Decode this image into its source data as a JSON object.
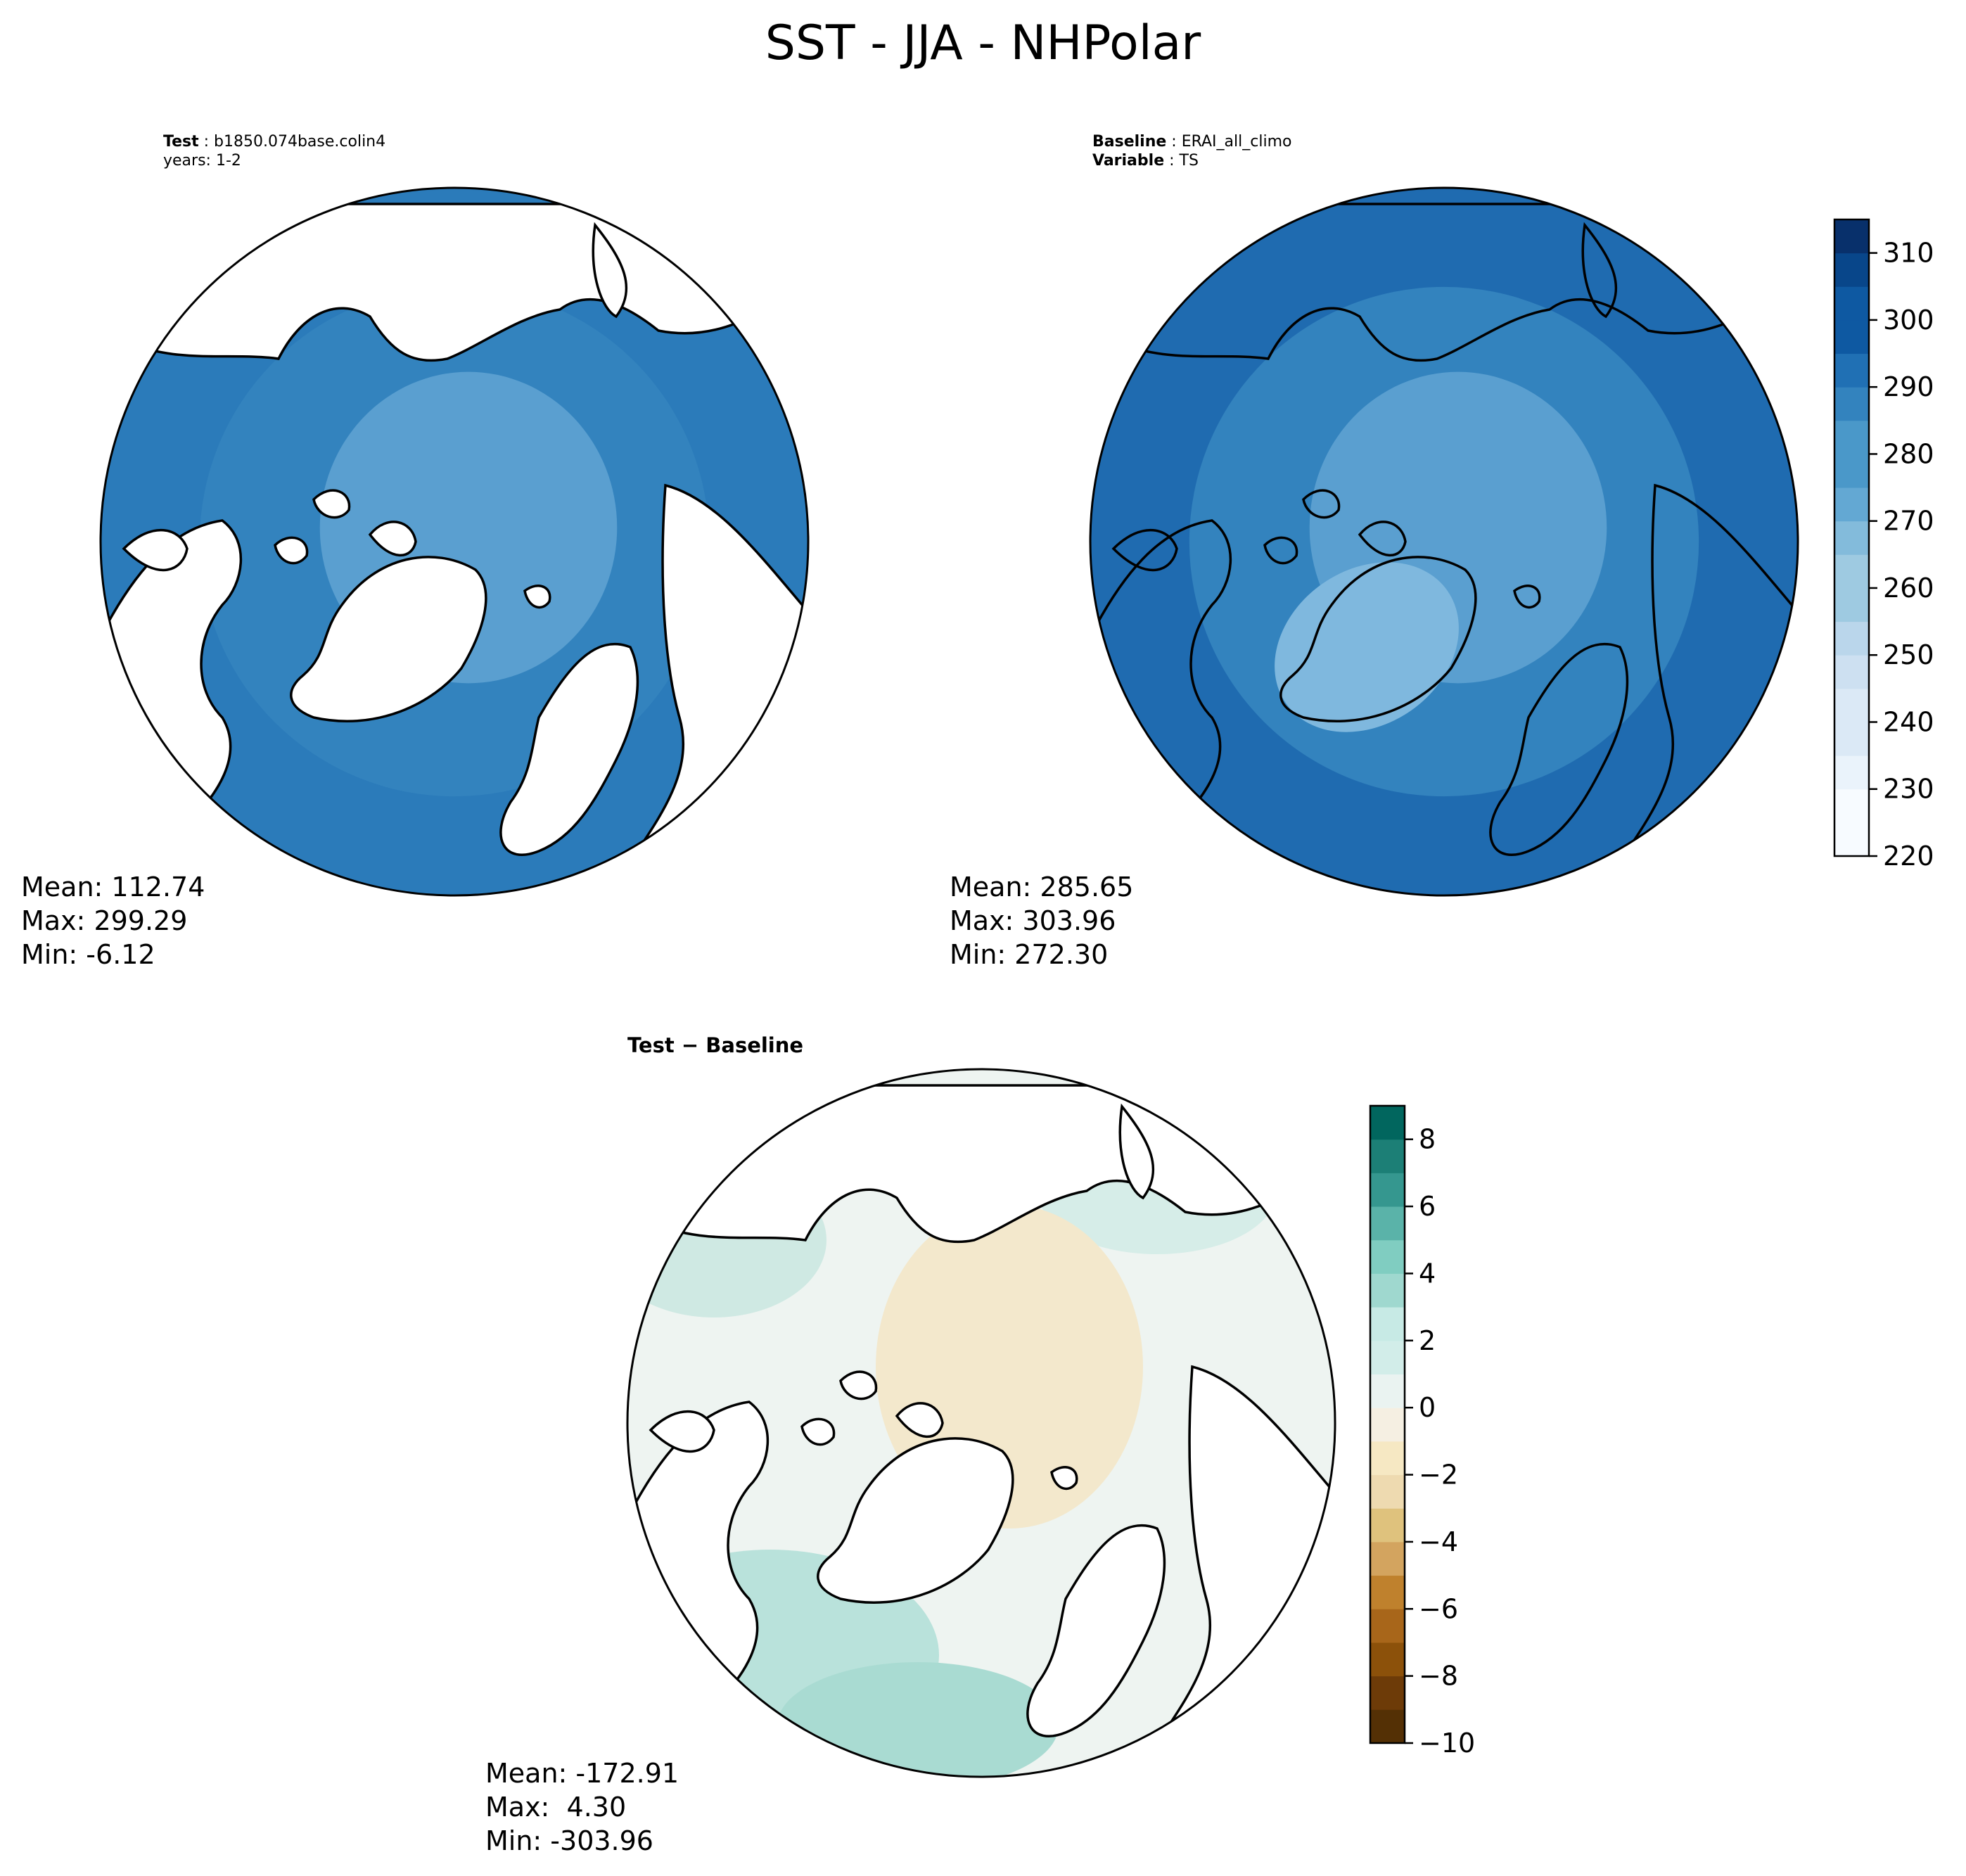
{
  "figure": {
    "title": "SST - JJA - NHPolar"
  },
  "panels": {
    "test": {
      "header_key": "Test",
      "header_value": "b1850.074base.colin4",
      "header_line2": "years: 1-2",
      "stats": [
        "Mean: 112.74",
        "Max: 299.29",
        "Min: -6.12"
      ]
    },
    "baseline": {
      "header_key": "Baseline",
      "header_value": "ERAI_all_climo",
      "header_key2": "Variable",
      "header_value2": "TS",
      "stats": [
        "Mean: 285.65",
        "Max: 303.96",
        "Min: 272.30"
      ]
    },
    "difference": {
      "title_left": "Test",
      "title_sep": "−",
      "title_right": "Baseline",
      "stats": [
        "Mean: -172.91",
        "Max:  4.30",
        "Min: -303.96"
      ]
    }
  },
  "chart_data": [
    {
      "type": "heatmap",
      "projection": "north-polar-stereographic",
      "title": "",
      "field": "SST",
      "colorbar": {
        "ticks": [
          220,
          230,
          240,
          250,
          260,
          270,
          280,
          290,
          300,
          310
        ],
        "tick_labels": [
          "220",
          "230",
          "240",
          "250",
          "260",
          "270",
          "280",
          "290",
          "300",
          "310"
        ],
        "range": [
          220,
          315
        ],
        "colormap": "Blues",
        "level_colors": [
          "#f7fbff",
          "#eaf3fb",
          "#dbe9f6",
          "#cde0f1",
          "#bad6eb",
          "#9ecae1",
          "#83bbdb",
          "#63a8d3",
          "#4a98c9",
          "#3383be",
          "#2070b4",
          "#0e59a2",
          "#08468a",
          "#08306b"
        ]
      },
      "stats": {
        "mean": 112.74,
        "max": 299.29,
        "min": -6.12
      }
    },
    {
      "type": "heatmap",
      "projection": "north-polar-stereographic",
      "title": "",
      "field": "TS",
      "colorbar": {
        "ticks": [
          220,
          230,
          240,
          250,
          260,
          270,
          280,
          290,
          300,
          310
        ],
        "range": [
          220,
          315
        ],
        "colormap": "Blues"
      },
      "stats": {
        "mean": 285.65,
        "max": 303.96,
        "min": 272.3
      }
    },
    {
      "type": "heatmap",
      "projection": "north-polar-stereographic",
      "title": "Test − Baseline",
      "colorbar": {
        "ticks": [
          -10,
          -8,
          -6,
          -4,
          -2,
          0,
          2,
          4,
          6,
          8
        ],
        "tick_labels": [
          "−10",
          "−8",
          "−6",
          "−4",
          "−2",
          "0",
          "2",
          "4",
          "6",
          "8"
        ],
        "range": [
          -10,
          9
        ],
        "colormap": "BrBG",
        "level_colors": [
          "#543005",
          "#6d3b08",
          "#8c510a",
          "#a8661a",
          "#bf812d",
          "#d3a45f",
          "#dfc27d",
          "#eedab0",
          "#f6e8c3",
          "#f5efe2",
          "#eaf3f1",
          "#d2ede9",
          "#c7eae5",
          "#9fd8cf",
          "#80cdc1",
          "#5ab3a9",
          "#35978f",
          "#1c7f76",
          "#01665e",
          "#003c30"
        ]
      },
      "stats": {
        "mean": -172.91,
        "max": 4.3,
        "min": -303.96
      }
    }
  ]
}
